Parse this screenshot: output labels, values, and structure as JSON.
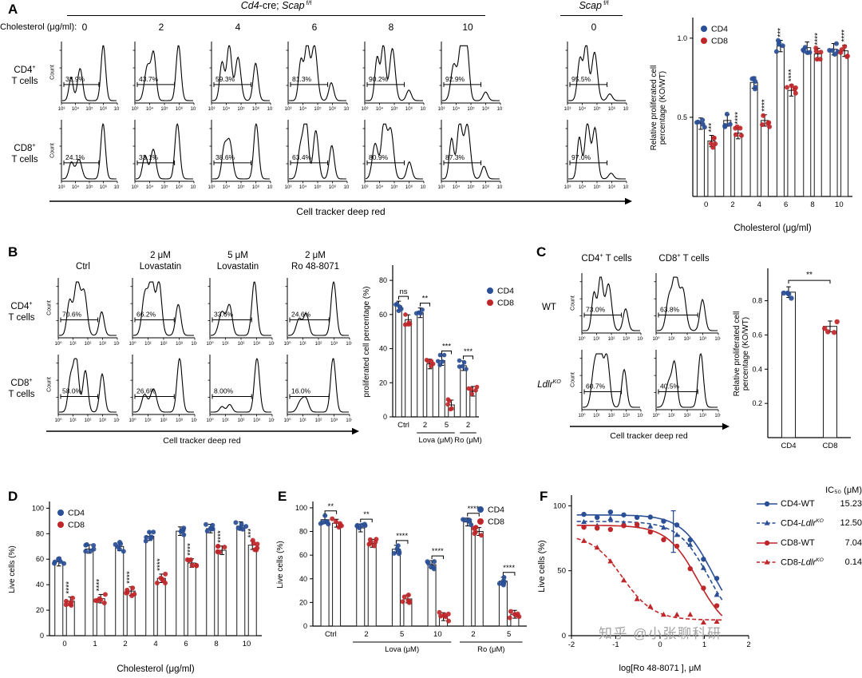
{
  "watermark": "知乎 @小张聊科研",
  "colors": {
    "cd4": "#2a4f96",
    "cd8": "#bf2629",
    "axis": "#000000",
    "watermark": "#a3a3a3"
  },
  "panelA": {
    "letter": "A",
    "header_main": [
      {
        "t": "i",
        "s": "Cd4"
      },
      {
        "t": "",
        "s": "-cre; "
      },
      {
        "t": "i",
        "s": "Scap"
      },
      {
        "t": "sup",
        "s": " f/f"
      }
    ],
    "header_ctrl": [
      {
        "t": "i",
        "s": "Scap"
      },
      {
        "t": "sup",
        "s": " f/f"
      }
    ],
    "dose_label": "Cholesterol (μg/ml):",
    "doses": [
      "0",
      "2",
      "4",
      "6",
      "8",
      "10",
      "0"
    ],
    "row_labels": [
      [
        {
          "t": "",
          "s": "CD4"
        },
        {
          "t": "sup",
          "s": "+"
        },
        {
          "t": "br",
          "s": ""
        },
        {
          "t": "",
          "s": "T cells"
        }
      ],
      [
        {
          "t": "",
          "s": "CD8"
        },
        {
          "t": "sup",
          "s": "+"
        },
        {
          "t": "br",
          "s": ""
        },
        {
          "t": "",
          "s": "T cells"
        }
      ]
    ],
    "count_label": "Count",
    "x_ticks": [
      "10³",
      "10⁴",
      "10⁵",
      "10⁶",
      "10⁷"
    ],
    "x_axis_label": "Cell tracker deep red"
  },
  "panelB": {
    "letter": "B",
    "col_headers": [
      [
        "Ctrl"
      ],
      [
        "2 μM",
        "Lovastatin"
      ],
      [
        "5 μM",
        "Lovastatin"
      ],
      [
        "2 μM",
        "Ro 48-8071"
      ]
    ],
    "row_labels": [
      [
        {
          "t": "",
          "s": "CD4"
        },
        {
          "t": "sup",
          "s": "+"
        },
        {
          "t": "br",
          "s": ""
        },
        {
          "t": "",
          "s": "T cells"
        }
      ],
      [
        {
          "t": "",
          "s": "CD8"
        },
        {
          "t": "sup",
          "s": "+"
        },
        {
          "t": "br",
          "s": ""
        },
        {
          "t": "",
          "s": "T cells"
        }
      ]
    ],
    "count_label": "Count",
    "x_ticks": [
      "10⁰",
      "10¹",
      "10²",
      "10³",
      "10⁴"
    ],
    "x_axis_label": "Cell tracker deep red"
  },
  "panelC": {
    "letter": "C",
    "col_headers": [
      [
        {
          "t": "",
          "s": "CD4"
        },
        {
          "t": "sup",
          "s": "+"
        },
        {
          "t": "",
          "s": " T cells"
        }
      ],
      [
        {
          "t": "",
          "s": "CD8"
        },
        {
          "t": "sup",
          "s": "+"
        },
        {
          "t": "",
          "s": " T cells"
        }
      ]
    ],
    "row_labels": [
      [
        {
          "t": "",
          "s": "WT"
        }
      ],
      [
        {
          "t": "i",
          "s": "Ldlr"
        },
        {
          "t": "isup",
          "s": "KO"
        }
      ]
    ],
    "count_label": "Count",
    "x_ticks": [
      "10⁰",
      "10¹",
      "10²",
      "10³",
      "10⁴"
    ],
    "x_axis_label": "Cell tracker deep red"
  },
  "panelD": {
    "letter": "D"
  },
  "panelE": {
    "letter": "E"
  },
  "panelF": {
    "letter": "F"
  },
  "chart_data": [
    {
      "id": "flow_a",
      "type": "table",
      "title": "Panel A flow histogram gate percentages (proliferated cells)",
      "columns": [
        "Cd4-cre;Scap f/f Chol 0",
        "2",
        "4",
        "6",
        "8",
        "10",
        "Scap f/f 0"
      ],
      "rows": [
        {
          "name": "CD4+ T cells",
          "values": [
            "33.9%",
            "43.7%",
            "59.3%",
            "81.3%",
            "90.2%",
            "92.9%",
            "95.5%"
          ]
        },
        {
          "name": "CD8+ T cells",
          "values": [
            "24.1%",
            "33.1%",
            "38.6%",
            "63.4%",
            "80.9%",
            "87.3%",
            "97.0%"
          ]
        }
      ]
    },
    {
      "id": "prolif_a",
      "type": "bar",
      "categories": [
        "0",
        "2",
        "4",
        "6",
        "8",
        "10"
      ],
      "series": [
        {
          "name": "CD4",
          "values": [
            0.46,
            0.48,
            0.72,
            0.95,
            0.94,
            0.93
          ]
        },
        {
          "name": "CD8",
          "values": [
            0.35,
            0.4,
            0.48,
            0.67,
            0.9,
            0.92
          ]
        }
      ],
      "sig": [
        [
          "",
          "***"
        ],
        [
          "",
          "****"
        ],
        [
          "",
          "****"
        ],
        [
          "***",
          "****"
        ],
        [
          "",
          "****"
        ],
        [
          "",
          "****"
        ]
      ],
      "ylabel": [
        "Relative proliferated cell",
        "percentage (KO/WT)"
      ],
      "xlabel": "Cholesterol (μg/ml)",
      "ylim": [
        0,
        1.12
      ],
      "yticks": [
        "0.5",
        "1.0"
      ],
      "legend": [
        "CD4",
        "CD8"
      ]
    },
    {
      "id": "flow_b",
      "type": "table",
      "title": "Panel B flow histogram gate percentages",
      "columns": [
        "Ctrl",
        "2 μM Lovastatin",
        "5 μM Lovastatin",
        "2 μM Ro 48-8071"
      ],
      "rows": [
        {
          "name": "CD4+ T cells",
          "values": [
            "70.6%",
            "66.2%",
            "33.6%",
            "24.6%"
          ]
        },
        {
          "name": "CD8+ T cells",
          "values": [
            "58.0%",
            "26.6%",
            "8.00%",
            "16.0%"
          ]
        }
      ]
    },
    {
      "id": "prolif_b",
      "type": "bar",
      "categories": [
        "Ctrl",
        "2",
        "5",
        "2"
      ],
      "series": [
        {
          "name": "CD4",
          "values": [
            65,
            61,
            33,
            30
          ]
        },
        {
          "name": "CD8",
          "values": [
            57,
            31,
            7,
            15
          ]
        }
      ],
      "sig": [
        "ns",
        "**",
        "***",
        "***"
      ],
      "group_brackets": [
        {
          "label": "Lova (μM)",
          "from": 1,
          "to": 2
        },
        {
          "label": "Ro (μM)",
          "from": 3,
          "to": 3
        }
      ],
      "ylabel": [
        "proliferated cell percentage (%)"
      ],
      "ylim": [
        0,
        88
      ],
      "yticks": [
        "0",
        "20",
        "40",
        "60",
        "80"
      ],
      "legend": [
        "CD4",
        "CD8"
      ]
    },
    {
      "id": "flow_c",
      "type": "table",
      "title": "Panel C flow histogram gate percentages",
      "columns": [
        "CD4+ T cells",
        "CD8+ T cells"
      ],
      "rows": [
        {
          "name": "WT",
          "values": [
            "73.0%",
            "63.8%"
          ]
        },
        {
          "name": "Ldlr KO",
          "values": [
            "60.7%",
            "40.5%"
          ]
        }
      ]
    },
    {
      "id": "prolif_c",
      "type": "bar",
      "categories": [
        "CD4",
        "CD8"
      ],
      "values": [
        0.85,
        0.65
      ],
      "sig": "**",
      "ylabel": [
        "Relative proliferated cell",
        "percentage (KO/WT)"
      ],
      "ylim": [
        0,
        0.98
      ],
      "yticks": [
        "0.2",
        "0.4",
        "0.6",
        "0.8"
      ]
    },
    {
      "id": "live_d",
      "type": "bar",
      "categories": [
        "0",
        "1",
        "2",
        "4",
        "6",
        "8",
        "10"
      ],
      "series": [
        {
          "name": "CD4",
          "values": [
            58,
            68,
            70,
            78,
            82,
            84,
            86
          ]
        },
        {
          "name": "CD8",
          "values": [
            27,
            29,
            35,
            45,
            57,
            67,
            71
          ]
        }
      ],
      "sig": [
        "****",
        "****",
        "****",
        "****",
        "****",
        "****",
        "***"
      ],
      "ylabel": [
        "Live cells  (%)"
      ],
      "xlabel": "Cholesterol (μg/ml)",
      "ylim": [
        0,
        104
      ],
      "yticks": [
        "0",
        "20",
        "40",
        "60",
        "80",
        "100"
      ],
      "legend": [
        "CD4",
        "CD8"
      ]
    },
    {
      "id": "live_e",
      "type": "bar",
      "categories": [
        "Ctrl",
        "2",
        "5",
        "10",
        "2",
        "5"
      ],
      "series": [
        {
          "name": "CD4",
          "values": [
            90,
            83,
            65,
            52,
            88,
            38
          ]
        },
        {
          "name": "CD8",
          "values": [
            87,
            70,
            23,
            8,
            80,
            10
          ]
        }
      ],
      "sig": [
        "**",
        "**",
        "****",
        "****",
        "****",
        "****"
      ],
      "group_brackets": [
        {
          "label": "Lova (μM)",
          "from": 1,
          "to": 3
        },
        {
          "label": "Ro (μM)",
          "from": 4,
          "to": 5
        }
      ],
      "ylabel": [
        "Live cells (%)"
      ],
      "ylim": [
        0,
        104
      ],
      "yticks": [
        "0",
        "20",
        "40",
        "60",
        "80",
        "100"
      ],
      "legend": [
        "CD4",
        "CD8"
      ]
    },
    {
      "id": "dose_f",
      "type": "line",
      "xlabel": "log[Ro 48-8071 ],  μM",
      "ylabel": "Live cells (%)",
      "xlim": [
        -2,
        2
      ],
      "xticks": [
        "-2",
        "-1",
        "0",
        "1",
        "2"
      ],
      "ylim": [
        0,
        107
      ],
      "yticks": [
        "0",
        "50",
        "100"
      ],
      "ic50_header": "IC₅₀ (μM)",
      "series": [
        {
          "label_pre": "CD4-WT",
          "label_it": "",
          "label_sup": "",
          "ic50": "15.23",
          "logIC50": 1.18,
          "top": 93,
          "bottom": 4,
          "color": "cd4",
          "dash": false,
          "marker": "circle"
        },
        {
          "label_pre": "CD4-",
          "label_it": "Ldlr",
          "label_sup": "KO",
          "ic50": "12.50",
          "logIC50": 1.1,
          "top": 88,
          "bottom": 2,
          "color": "cd4",
          "dash": true,
          "marker": "triangle",
          "err_at": 0.3,
          "err": 16
        },
        {
          "label_pre": "CD8-WT",
          "label_it": "",
          "label_sup": "",
          "ic50": "7.04",
          "logIC50": 0.85,
          "top": 85,
          "bottom": 1,
          "color": "cd8",
          "dash": false,
          "marker": "circle"
        },
        {
          "label_pre": "CD8-",
          "label_it": "Ldlr",
          "label_sup": "KO",
          "ic50": "0.14",
          "logIC50": -0.85,
          "top": 78,
          "bottom": 12,
          "color": "cd8",
          "dash": true,
          "marker": "triangle"
        }
      ]
    }
  ]
}
